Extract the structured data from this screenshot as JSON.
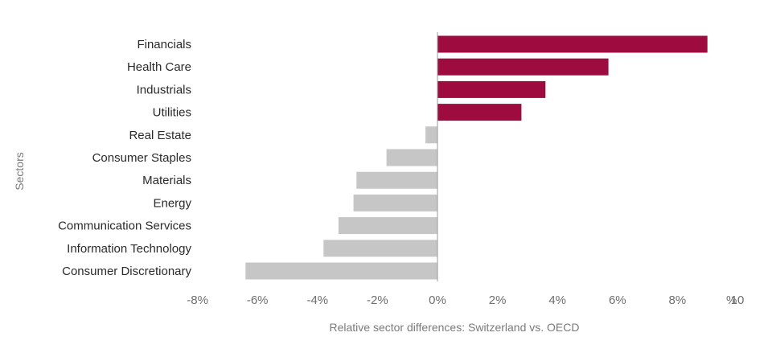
{
  "chart_data": {
    "type": "bar",
    "orientation": "horizontal",
    "categories": [
      "Financials",
      "Health Care",
      "Industrials",
      "Utilities",
      "Real Estate",
      "Consumer Staples",
      "Materials",
      "Energy",
      "Communication Services",
      "Information Technology",
      "Consumer Discretionary"
    ],
    "values": [
      9.0,
      5.7,
      3.6,
      2.8,
      -0.4,
      -1.7,
      -2.7,
      -2.8,
      -3.3,
      -3.8,
      -6.4
    ],
    "xlabel": "Relative sector differences: Switzerland vs. OECD",
    "ylabel": "Sectors",
    "xlim": [
      -8,
      10
    ],
    "xticks": [
      -8,
      -6,
      -4,
      -2,
      0,
      2,
      4,
      6,
      8,
      10
    ],
    "xtick_labels": [
      "-8%",
      "-6%",
      "-4%",
      "-2%",
      "0%",
      "2%",
      "4%",
      "6%",
      "8%",
      "10"
    ],
    "x_unit_label": "%",
    "grid": false,
    "colors": {
      "positive": "#9e0c3f",
      "negative": "#c6c6c6",
      "zero_line": "#9a9a9a"
    }
  }
}
